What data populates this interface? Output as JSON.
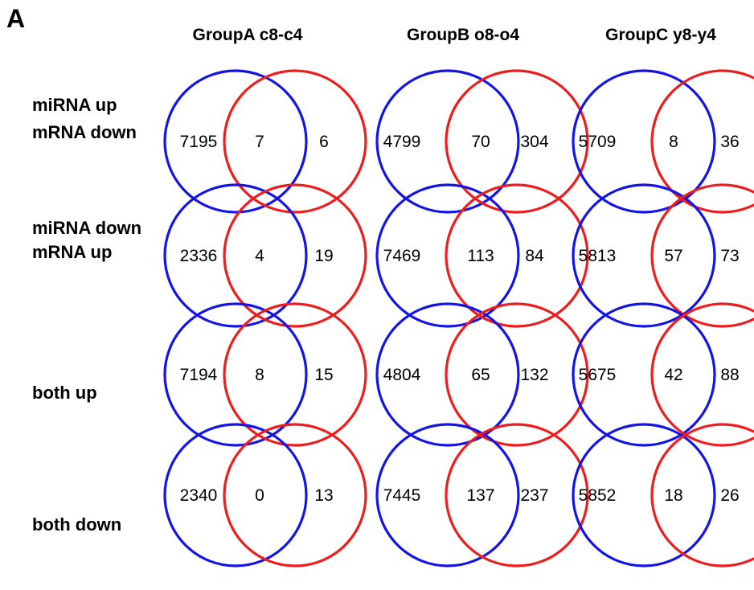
{
  "panel_label": "A",
  "colors": {
    "left_set": "#1414e6",
    "right_set": "#ee1c1c"
  },
  "columns": [
    {
      "title": "GroupA c8-c4"
    },
    {
      "title": "GroupB o8-o4"
    },
    {
      "title": "GroupC y8-y4"
    }
  ],
  "rows": [
    {
      "label_lines": [
        "miRNA up",
        "mRNA down"
      ]
    },
    {
      "label_lines": [
        "miRNA down",
        "mRNA up"
      ]
    },
    {
      "label_lines": [
        "both up"
      ]
    },
    {
      "label_lines": [
        "both down"
      ]
    }
  ],
  "venns": [
    [
      {
        "left": "7195",
        "overlap": "7",
        "right": "6"
      },
      {
        "left": "4799",
        "overlap": "70",
        "right": "304"
      },
      {
        "left": "5709",
        "overlap": "8",
        "right": "36"
      }
    ],
    [
      {
        "left": "2336",
        "overlap": "4",
        "right": "19"
      },
      {
        "left": "7469",
        "overlap": "113",
        "right": "84"
      },
      {
        "left": "5813",
        "overlap": "57",
        "right": "73"
      }
    ],
    [
      {
        "left": "7194",
        "overlap": "8",
        "right": "15"
      },
      {
        "left": "4804",
        "overlap": "65",
        "right": "132"
      },
      {
        "left": "5675",
        "overlap": "42",
        "right": "88"
      }
    ],
    [
      {
        "left": "2340",
        "overlap": "0",
        "right": "13"
      },
      {
        "left": "7445",
        "overlap": "137",
        "right": "237"
      },
      {
        "left": "5852",
        "overlap": "18",
        "right": "26"
      }
    ]
  ]
}
